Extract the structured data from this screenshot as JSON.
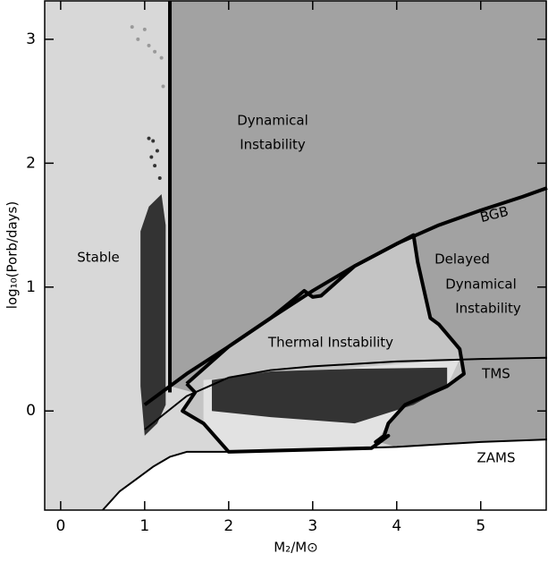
{
  "chart_data": {
    "type": "region",
    "xlabel": "M₂/M⊙",
    "ylabel": "log₁₀(Porb/days)",
    "xlim": [
      -0.19,
      5.79
    ],
    "ylim": [
      -0.8,
      3.31
    ],
    "xticks": [
      0,
      1,
      2,
      3,
      4,
      5
    ],
    "yticks": [
      0,
      1,
      2,
      3
    ],
    "annotations": [
      "Dynamical",
      "Instability",
      "Stable",
      "BGB",
      "Delayed",
      "Dynamical",
      "Instability",
      "Thermal Instability",
      "TMS",
      "ZAMS"
    ],
    "regions": [
      {
        "color": "#d8d8d8",
        "x": [
          -0.19,
          5.79,
          5.79,
          -0.19
        ],
        "y": [
          -0.8,
          -0.8,
          3.31,
          3.31
        ]
      },
      {
        "color": "#a2a2a2",
        "x": [
          1.3,
          5.79,
          5.79,
          4,
          1.3
        ],
        "y": [
          3.31,
          3.31,
          -0.23,
          -0.29,
          0.2
        ]
      },
      {
        "color": "#ffffff",
        "x": [
          0.5,
          0.7,
          0.9,
          1.1,
          1.3,
          1.5,
          2,
          3,
          4,
          5,
          5.79,
          5.79
        ],
        "y": [
          -0.8,
          -0.65,
          -0.55,
          -0.45,
          -0.37,
          -0.33,
          -0.33,
          -0.31,
          -0.29,
          -0.25,
          -0.23,
          -0.8
        ]
      },
      {
        "color": "#c4c4c4",
        "x": [
          1.5,
          2,
          2.5,
          2.9,
          3.0,
          3.1,
          3.5,
          4.2,
          4.25,
          4.4,
          4.5,
          4.75,
          4.8,
          4.6,
          4.1,
          3.9,
          3.85,
          3.75,
          3.9,
          3.7,
          2,
          1.7,
          1.45,
          1.6
        ],
        "y": [
          0.22,
          0.52,
          0.75,
          0.97,
          0.92,
          0.93,
          1.17,
          1.42,
          1.2,
          0.75,
          0.7,
          0.5,
          0.3,
          0.2,
          0.05,
          -0.1,
          -0.2,
          -0.25,
          -0.2,
          -0.3,
          -0.33,
          -0.1,
          0.0,
          0.15
        ]
      },
      {
        "color": "#e2e2e2",
        "x": [
          1.7,
          4.75,
          4.6,
          4.1,
          3.9,
          3.7,
          2,
          1.7
        ],
        "y": [
          0.25,
          0.42,
          0.2,
          0.05,
          -0.1,
          -0.3,
          -0.33,
          -0.1
        ]
      },
      {
        "color": "#333333",
        "x": [
          1.8,
          2.5,
          3.5,
          4.6,
          4.6,
          4.2,
          3.5,
          2.5,
          1.8
        ],
        "y": [
          0.25,
          0.32,
          0.34,
          0.35,
          0.2,
          0.05,
          -0.1,
          -0.05,
          0.0
        ]
      },
      {
        "color": "#333333",
        "x": [
          0.95,
          1.05,
          1.2,
          1.25,
          1.25,
          1.15,
          1.0,
          0.95
        ],
        "y": [
          1.45,
          1.65,
          1.75,
          1.5,
          0.05,
          -0.1,
          -0.2,
          0.2
        ]
      }
    ],
    "curves": [
      {
        "x": [
          0.5,
          0.7,
          0.9,
          1.1,
          1.3,
          1.5,
          2,
          3,
          4,
          5,
          5.79
        ],
        "y": [
          -0.8,
          -0.65,
          -0.55,
          -0.45,
          -0.37,
          -0.33,
          -0.33,
          -0.31,
          -0.29,
          -0.25,
          -0.23
        ]
      },
      {
        "x": [
          1,
          1.5,
          2,
          2.5,
          3,
          4,
          5,
          5.79
        ],
        "y": [
          -0.15,
          0.12,
          0.27,
          0.33,
          0.36,
          0.4,
          0.42,
          0.43
        ]
      },
      {
        "x": [
          1,
          1.5,
          2,
          2.5,
          3,
          3.5,
          4,
          4.5,
          5,
          5.5,
          5.79
        ],
        "y": [
          0.05,
          0.3,
          0.52,
          0.75,
          0.97,
          1.17,
          1.35,
          1.5,
          1.62,
          1.73,
          1.8
        ]
      },
      {
        "x": [
          1.3,
          1.3
        ],
        "y": [
          0.15,
          3.31
        ]
      },
      {
        "x": [
          1.5,
          2,
          2.5,
          2.9,
          3.0,
          3.1,
          3.5,
          4.2,
          4.25,
          4.4,
          4.5,
          4.75,
          4.8,
          4.6,
          4.1,
          3.9,
          3.85,
          3.75,
          3.9,
          3.7,
          2,
          1.7,
          1.45,
          1.6,
          1.5
        ],
        "y": [
          0.22,
          0.52,
          0.75,
          0.97,
          0.92,
          0.93,
          1.17,
          1.42,
          1.2,
          0.75,
          0.7,
          0.5,
          0.3,
          0.2,
          0.05,
          -0.1,
          -0.2,
          -0.25,
          -0.2,
          -0.3,
          -0.33,
          -0.1,
          0.0,
          0.15,
          0.22
        ]
      }
    ],
    "points": {
      "color": "#999999",
      "x": [
        0.85,
        0.92,
        1.0,
        1.05,
        1.12,
        1.2,
        1.22
      ],
      "y": [
        3.1,
        3.0,
        3.08,
        2.95,
        2.9,
        2.85,
        2.62
      ]
    },
    "points_dark": {
      "color": "#333333",
      "x": [
        1.05,
        1.1,
        1.15,
        1.08,
        1.12,
        1.18
      ],
      "y": [
        2.2,
        2.18,
        2.1,
        2.05,
        1.98,
        1.88
      ]
    }
  }
}
